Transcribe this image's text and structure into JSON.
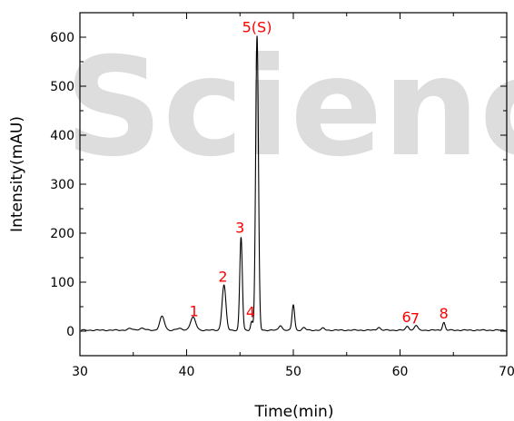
{
  "watermark": "Science",
  "chart_data": {
    "type": "line",
    "xlabel": "Time(min)",
    "ylabel": "Intensity(mAU)",
    "xlim": [
      30,
      70
    ],
    "ylim": [
      -50,
      650
    ],
    "x_ticks": [
      30,
      40,
      50,
      60,
      70
    ],
    "y_ticks": [
      0,
      100,
      200,
      300,
      400,
      500,
      600
    ],
    "grid": false,
    "line_color": "#000000",
    "label_color": "#ff0000",
    "baseline": 2,
    "peaks": [
      {
        "t": 34.7,
        "h": 3,
        "w": 0.25
      },
      {
        "t": 35.8,
        "h": 4,
        "w": 0.25
      },
      {
        "t": 37.7,
        "h": 28,
        "w": 0.22
      },
      {
        "t": 39.3,
        "h": 3,
        "w": 0.3
      },
      {
        "t": 40.6,
        "h": 26,
        "w": 0.25
      },
      {
        "t": 43.5,
        "h": 92,
        "w": 0.18
      },
      {
        "t": 45.1,
        "h": 190,
        "w": 0.12
      },
      {
        "t": 46.1,
        "h": 18,
        "w": 0.1
      },
      {
        "t": 46.6,
        "h": 600,
        "w": 0.13
      },
      {
        "t": 48.8,
        "h": 10,
        "w": 0.15
      },
      {
        "t": 50.0,
        "h": 52,
        "w": 0.12
      },
      {
        "t": 51.0,
        "h": 5,
        "w": 0.15
      },
      {
        "t": 52.8,
        "h": 4,
        "w": 0.15
      },
      {
        "t": 58.0,
        "h": 6,
        "w": 0.15
      },
      {
        "t": 60.7,
        "h": 8,
        "w": 0.15
      },
      {
        "t": 61.5,
        "h": 10,
        "w": 0.15
      },
      {
        "t": 64.1,
        "h": 16,
        "w": 0.12
      }
    ],
    "annotations": [
      {
        "text": "1",
        "x": 40.7,
        "y": 25
      },
      {
        "text": "2",
        "x": 43.4,
        "y": 95
      },
      {
        "text": "3",
        "x": 45.0,
        "y": 195
      },
      {
        "text": "4",
        "x": 46.0,
        "y": 23
      },
      {
        "text": "5(S)",
        "x": 46.6,
        "y": 605
      },
      {
        "text": "6",
        "x": 60.6,
        "y": 13
      },
      {
        "text": "7",
        "x": 61.4,
        "y": 10
      },
      {
        "text": "8",
        "x": 64.1,
        "y": 20
      }
    ]
  }
}
